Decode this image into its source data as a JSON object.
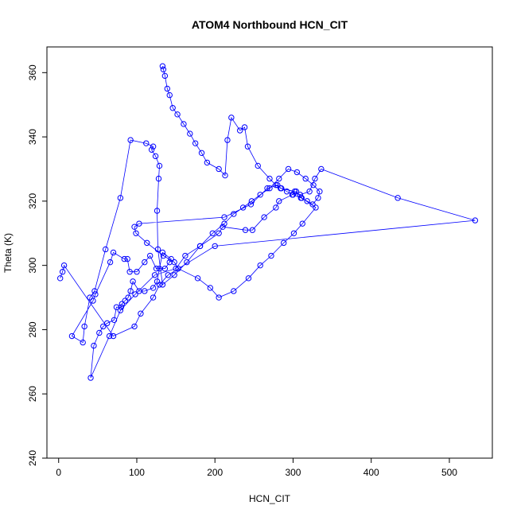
{
  "chart_data": {
    "type": "scatter",
    "title": "ATOM4 Northbound HCN_CIT",
    "xlabel": "HCN_CIT",
    "ylabel": "Theta (K)",
    "xlim": [
      -15,
      555
    ],
    "ylim": [
      240,
      368
    ],
    "x_ticks": [
      0,
      100,
      200,
      300,
      400,
      500
    ],
    "x_tick_labels": [
      "0",
      "100",
      "200",
      "300",
      "400",
      "500"
    ],
    "y_ticks": [
      240,
      260,
      280,
      300,
      320,
      340,
      360
    ],
    "y_tick_labels": [
      "240",
      "260",
      "280",
      "300",
      "320",
      "340",
      "360"
    ],
    "grid": false,
    "color": "#0000ff",
    "marker": "open-circle",
    "connect_points": true,
    "series": [
      {
        "x": [
          133,
          134,
          136,
          139,
          142,
          146,
          152,
          160,
          168,
          175,
          183,
          190,
          205,
          213,
          216,
          221,
          232,
          238,
          242,
          255,
          270,
          278,
          285,
          292,
          300,
          310,
          318,
          325,
          332,
          334,
          326,
          316,
          305,
          294,
          282,
          270,
          258,
          247,
          236,
          224,
          212,
          197,
          181,
          164,
          148,
          133,
          127,
          126,
          128,
          129,
          124,
          119,
          121,
          112,
          92,
          79,
          60,
          46,
          40,
          33,
          31,
          17,
          44,
          47,
          66,
          70,
          84,
          88,
          91,
          100,
          110,
          117,
          125,
          136,
          142,
          144,
          133,
          129,
          126,
          121,
          110,
          103,
          95,
          92,
          89,
          85,
          81,
          80,
          74,
          71,
          62,
          57,
          52,
          45,
          41,
          65,
          79,
          98,
          123,
          150,
          162,
          181,
          205,
          210,
          239,
          248,
          263,
          278,
          282,
          299,
          304,
          311,
          329,
          312,
          301,
          288,
          272,
          258,
          243,
          224,
          205,
          194,
          178,
          153,
          148,
          134,
          113,
          99,
          97,
          103,
          212,
          246,
          267,
          280,
          284,
          302,
          309,
          321,
          328,
          336,
          434,
          533,
          200,
          140,
          129,
          121,
          105,
          97,
          70,
          7,
          5,
          2
        ],
        "y": [
          362,
          361,
          359,
          355,
          353,
          349,
          347,
          344,
          341,
          338,
          335,
          332,
          330,
          328,
          339,
          346,
          342,
          343,
          337,
          331,
          327,
          325,
          324,
          323,
          322,
          321,
          320,
          319,
          321,
          323,
          325,
          327,
          329,
          330,
          327,
          324,
          322,
          320,
          318,
          316,
          313,
          310,
          306,
          301,
          297,
          294,
          305,
          317,
          327,
          331,
          334,
          336,
          337,
          338,
          339,
          321,
          305,
          292,
          290,
          281,
          276,
          278,
          289,
          291,
          301,
          304,
          302,
          302,
          298,
          298,
          301,
          303,
          299,
          299,
          301,
          302,
          304,
          299,
          295,
          293,
          292,
          292,
          295,
          292,
          290,
          289,
          288,
          287,
          287,
          283,
          282,
          281,
          279,
          275,
          265,
          278,
          286,
          291,
          297,
          299,
          303,
          306,
          310,
          312,
          311,
          311,
          315,
          318,
          320,
          322,
          323,
          321,
          318,
          313,
          310,
          307,
          303,
          300,
          296,
          292,
          290,
          293,
          296,
          299,
          301,
          303,
          307,
          310,
          312,
          313,
          315,
          319,
          324,
          325,
          324,
          323,
          322,
          323,
          327,
          330,
          321,
          314,
          306,
          297,
          294,
          290,
          285,
          281,
          278,
          300,
          298,
          296
        ]
      }
    ]
  }
}
